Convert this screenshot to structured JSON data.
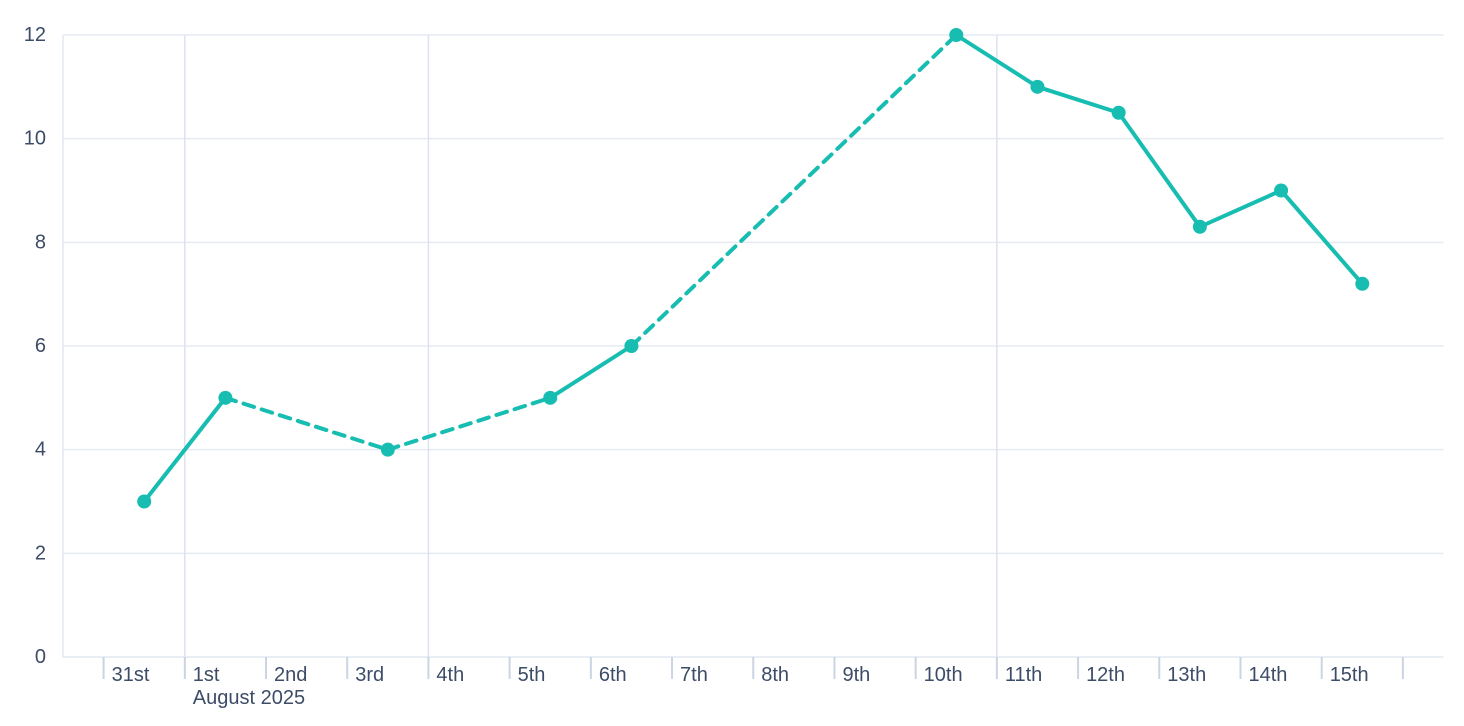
{
  "page": {
    "background_color": "#FFFFFF"
  },
  "chart_data": {
    "type": "line",
    "title": "",
    "xlabel": "",
    "ylabel": "",
    "x_axis_month_label": "August 2025",
    "x_tick_labels": [
      "31st",
      "1st",
      "2nd",
      "3rd",
      "4th",
      "5th",
      "6th",
      "7th",
      "8th",
      "9th",
      "10th",
      "11th",
      "12th",
      "13th",
      "14th",
      "15th"
    ],
    "y_ticks": [
      0,
      2,
      4,
      6,
      8,
      10,
      12
    ],
    "ylim": [
      0,
      12
    ],
    "grid": true,
    "legend": "none",
    "vertical_gridlines_at": [
      "1st",
      "4th",
      "11th"
    ],
    "points": [
      {
        "label": "31st",
        "day_offset": 0,
        "value": 3
      },
      {
        "label": "1st",
        "day_offset": 1,
        "value": 5
      },
      {
        "label": "3rd",
        "day_offset": 3,
        "value": 4
      },
      {
        "label": "5th",
        "day_offset": 5,
        "value": 5
      },
      {
        "label": "6th",
        "day_offset": 6,
        "value": 6
      },
      {
        "label": "10th",
        "day_offset": 10,
        "value": 12
      },
      {
        "label": "11th",
        "day_offset": 11,
        "value": 11
      },
      {
        "label": "12th",
        "day_offset": 12,
        "value": 10.5
      },
      {
        "label": "13th",
        "day_offset": 13,
        "value": 8.3
      },
      {
        "label": "14th",
        "day_offset": 14,
        "value": 9
      },
      {
        "label": "15th",
        "day_offset": 15,
        "value": 7.2
      }
    ],
    "segment_styles": [
      "solid",
      "dashed",
      "dashed",
      "solid",
      "dashed",
      "solid",
      "solid",
      "solid",
      "solid",
      "solid"
    ],
    "colors": {
      "line": "#18BDB2",
      "marker": "#18BDB2",
      "horizontal_grid": "#E6EAF3",
      "vertical_grid": "#DCE2EE",
      "axis_line": "#E2E7F1",
      "tick_mark": "#CBD4E3",
      "label_text": "#3D4C66"
    }
  }
}
